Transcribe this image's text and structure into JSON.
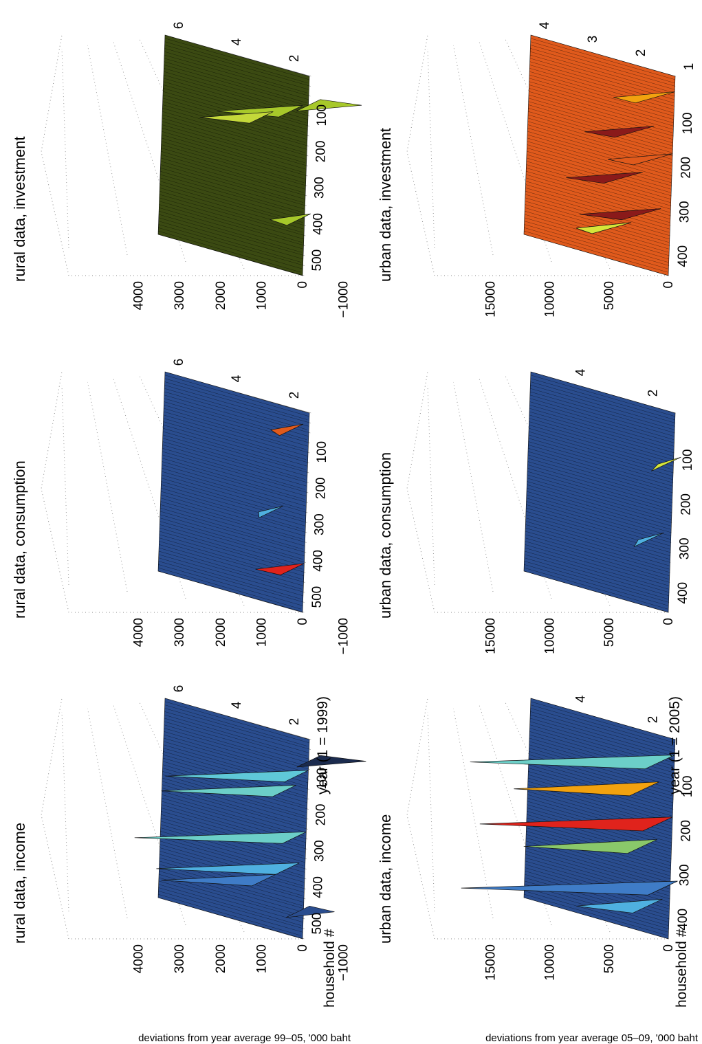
{
  "figure": {
    "ylabel_top": "deviations from year average 99–05, '000 baht",
    "ylabel_bottom": "deviations from year average 05–09, '000 baht"
  },
  "chart_data": [
    {
      "type": "surface",
      "title": "rural data, income",
      "xlabel": "household #",
      "ylabel": "year (1 = 1999)",
      "zlabel": "",
      "xlim": [
        0,
        550
      ],
      "ylim": [
        1,
        6
      ],
      "zlim": [
        -1500,
        4000
      ],
      "x_ticks": [
        "500",
        "400",
        "300",
        "200",
        "100"
      ],
      "y_ticks": [
        "2",
        "4",
        "6"
      ],
      "z_ticks": [
        "4000",
        "3000",
        "2000",
        "1000",
        "0",
        "−1000"
      ],
      "grid": true,
      "colormap": [
        "#1b2b4e",
        "#2a4d8f",
        "#3f7cc7",
        "#4fb0e0",
        "#6ccfc8",
        "#d6e53a",
        "#f2a20f",
        "#e0231c"
      ],
      "spikes": [
        {
          "household": 60,
          "year": 1,
          "value": -1400,
          "color": "#1b2b4e"
        },
        {
          "household": 110,
          "year": 1.4,
          "value": 3200,
          "color": "#5fc8d8"
        },
        {
          "household": 160,
          "year": 1.8,
          "value": 3000,
          "color": "#6ccfc8"
        },
        {
          "household": 280,
          "year": 1.4,
          "value": 3900,
          "color": "#6ccfc8"
        },
        {
          "household": 370,
          "year": 1.6,
          "value": 3200,
          "color": "#4fb0e0"
        },
        {
          "household": 420,
          "year": 2.4,
          "value": 2500,
          "color": "#3f7cc7"
        },
        {
          "household": 480,
          "year": 1.2,
          "value": -900,
          "color": "#2a4d8f"
        }
      ]
    },
    {
      "type": "surface",
      "title": "rural data, consumption",
      "xlabel": "",
      "ylabel": "",
      "zlabel": "",
      "xlim": [
        0,
        550
      ],
      "ylim": [
        1,
        6
      ],
      "zlim": [
        -1500,
        4000
      ],
      "x_ticks": [
        "500",
        "400",
        "300",
        "200",
        "100"
      ],
      "y_ticks": [
        "2",
        "4",
        "6"
      ],
      "z_ticks": [
        "4000",
        "3000",
        "2000",
        "1000",
        "0",
        "−1000"
      ],
      "grid": true,
      "colormap": [
        "#1b2b4e",
        "#2a4d8f",
        "#3f7cc7",
        "#4fb0e0",
        "#6ccfc8",
        "#d6e53a",
        "#f2a20f",
        "#e0231c"
      ],
      "spikes": [
        {
          "household": 60,
          "year": 1.6,
          "value": 500,
          "color": "#e05a1c"
        },
        {
          "household": 300,
          "year": 2.2,
          "value": 300,
          "color": "#4fb0e0"
        },
        {
          "household": 440,
          "year": 1.4,
          "value": 900,
          "color": "#e0231c"
        }
      ]
    },
    {
      "type": "surface",
      "title": "rural data, investment",
      "xlabel": "",
      "ylabel": "",
      "zlabel": "",
      "xlim": [
        0,
        550
      ],
      "ylim": [
        1,
        6
      ],
      "zlim": [
        -1500,
        4000
      ],
      "x_ticks": [
        "500",
        "400",
        "300",
        "200",
        "100"
      ],
      "y_ticks": [
        "2",
        "4",
        "6"
      ],
      "z_ticks": [
        "4000",
        "3000",
        "2000",
        "1000",
        "0",
        "−1000"
      ],
      "grid": true,
      "colormap": [
        "#1c1f10",
        "#3b4a12",
        "#6e8a18",
        "#a7c82a",
        "#c4d83a",
        "#d6e53a"
      ],
      "spikes": [
        {
          "household": 80,
          "year": 1,
          "value": -1300,
          "color": "#a7c82a"
        },
        {
          "household": 110,
          "year": 1.6,
          "value": 1800,
          "color": "#a7c82a"
        },
        {
          "household": 150,
          "year": 2.6,
          "value": 1500,
          "color": "#c4d83a"
        },
        {
          "household": 400,
          "year": 1.2,
          "value": 700,
          "color": "#a7c82a"
        }
      ]
    },
    {
      "type": "surface",
      "title": "urban data, income",
      "xlabel": "household #",
      "ylabel": "year (1 = 2005)",
      "zlabel": "",
      "xlim": [
        0,
        450
      ],
      "ylim": [
        1,
        5
      ],
      "zlim": [
        -2000,
        17000
      ],
      "x_ticks": [
        "400",
        "300",
        "200",
        "100"
      ],
      "y_ticks": [
        "2",
        "4"
      ],
      "z_ticks": [
        "15000",
        "10000",
        "5000",
        "0"
      ],
      "grid": true,
      "colormap": [
        "#1b2b4e",
        "#2a4d8f",
        "#3f7cc7",
        "#4fb0e0",
        "#6ccfc8",
        "#8ac86a",
        "#d6e53a",
        "#f2a20f",
        "#e0231c"
      ],
      "spikes": [
        {
          "household": 60,
          "year": 1.4,
          "value": 16000,
          "color": "#6ccfc8"
        },
        {
          "household": 130,
          "year": 1.8,
          "value": 11000,
          "color": "#f2a20f"
        },
        {
          "household": 200,
          "year": 1.4,
          "value": 15000,
          "color": "#e0231c"
        },
        {
          "household": 260,
          "year": 1.8,
          "value": 10000,
          "color": "#8ac86a"
        },
        {
          "household": 340,
          "year": 1.2,
          "value": 17000,
          "color": "#3f7cc7"
        },
        {
          "household": 390,
          "year": 1.6,
          "value": 6000,
          "color": "#4fb0e0"
        }
      ]
    },
    {
      "type": "surface",
      "title": "urban data, consumption",
      "xlabel": "",
      "ylabel": "",
      "zlabel": "",
      "xlim": [
        0,
        450
      ],
      "ylim": [
        1,
        5
      ],
      "zlim": [
        -2000,
        17000
      ],
      "x_ticks": [
        "400",
        "300",
        "200",
        "100"
      ],
      "y_ticks": [
        "2",
        "4"
      ],
      "z_ticks": [
        "15000",
        "10000",
        "5000",
        "0"
      ],
      "grid": true,
      "colormap": [
        "#1b2b4e",
        "#2a4d8f",
        "#3f7cc7",
        "#4fb0e0",
        "#6ccfc8",
        "#d6e53a"
      ],
      "spikes": [
        {
          "household": 120,
          "year": 1.2,
          "value": 700,
          "color": "#d6e53a"
        },
        {
          "household": 300,
          "year": 1.6,
          "value": 900,
          "color": "#4fb0e0"
        }
      ]
    },
    {
      "type": "surface",
      "title": "urban data, investment",
      "xlabel": "",
      "ylabel": "",
      "zlabel": "",
      "xlim": [
        0,
        450
      ],
      "ylim": [
        1,
        4
      ],
      "zlim": [
        -2000,
        17000
      ],
      "x_ticks": [
        "400",
        "300",
        "200",
        "100"
      ],
      "y_ticks": [
        "1",
        "2",
        "3",
        "4"
      ],
      "z_ticks": [
        "15000",
        "10000",
        "5000",
        "0"
      ],
      "grid": true,
      "colormap": [
        "#8a1a1a",
        "#e05a1c",
        "#f2a20f",
        "#d6e53a",
        "#c4d83a",
        "#a7c82a"
      ],
      "spikes": [
        {
          "household": 60,
          "year": 1.4,
          "value": 3500,
          "color": "#f2a20f"
        },
        {
          "household": 150,
          "year": 1.8,
          "value": 4200,
          "color": "#8a1a1a"
        },
        {
          "household": 200,
          "year": 1.4,
          "value": 3800,
          "color": "#e05a1c"
        },
        {
          "household": 260,
          "year": 2.0,
          "value": 4800,
          "color": "#8a1a1a"
        },
        {
          "household": 330,
          "year": 1.6,
          "value": 5200,
          "color": "#8a1a1a"
        },
        {
          "household": 380,
          "year": 2.2,
          "value": 3000,
          "color": "#d6e53a"
        }
      ]
    }
  ]
}
